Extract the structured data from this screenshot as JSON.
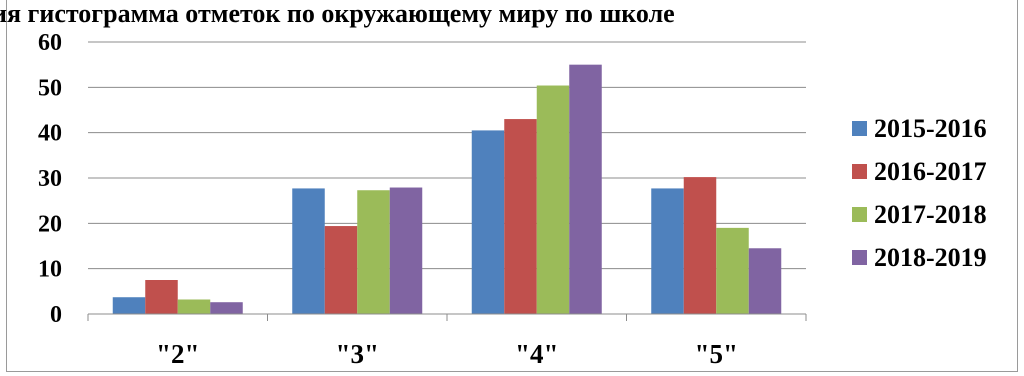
{
  "chart_data": {
    "type": "bar",
    "title": "ия гистограмма отметок по окружающему миру по школе",
    "categories": [
      "\"2\"",
      "\"3\"",
      "\"4\"",
      "\"5\""
    ],
    "series": [
      {
        "name": "2015-2016",
        "color": "#4f81bd",
        "values": [
          3.7,
          27.7,
          40.5,
          27.7
        ]
      },
      {
        "name": "2016-2017",
        "color": "#c0504d",
        "values": [
          7.5,
          19.4,
          43.0,
          30.2
        ]
      },
      {
        "name": "2017-2018",
        "color": "#9bbb59",
        "values": [
          3.2,
          27.3,
          50.4,
          19.0
        ]
      },
      {
        "name": "2018-2019",
        "color": "#8064a2",
        "values": [
          2.6,
          27.9,
          55.0,
          14.5
        ]
      }
    ],
    "ylim": [
      0,
      60
    ],
    "yticks": [
      "0",
      "10",
      "20",
      "30",
      "40",
      "50",
      "60"
    ],
    "grid": true,
    "legend_position": "right"
  }
}
